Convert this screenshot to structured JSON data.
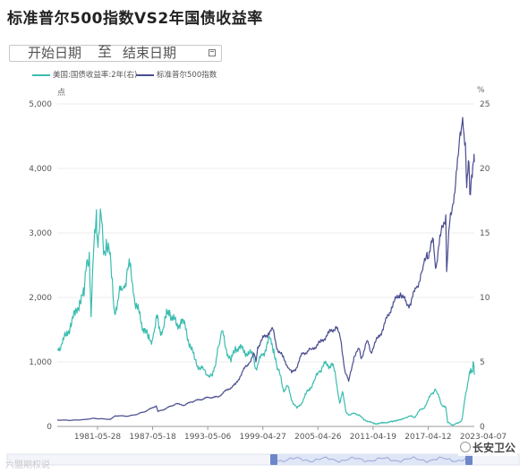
{
  "title": "标准普尔500指数VS2年国债收益率",
  "date_range": {
    "start_label": "开始日期",
    "separator": "至",
    "end_label": "结束日期"
  },
  "legend": {
    "yield_label": "美国:国债收益率:2年(右)",
    "spx_label": "标准普尔500指数",
    "yield_color": "#3bbdb0",
    "spx_color": "#4a4d8f"
  },
  "axes": {
    "left_unit": "点",
    "right_unit": "%"
  },
  "watermark": "六盟期权说",
  "brand": "长安卫公",
  "chart_data": {
    "type": "line",
    "title": "标准普尔500指数VS2年国债收益率",
    "x_tick_labels": [
      "1981-05-28",
      "1987-05-18",
      "1993-05-06",
      "1999-04-27",
      "2005-04-26",
      "2011-04-19",
      "2017-04-12",
      "2023-04-07"
    ],
    "x_range": [
      1976.5,
      2023.3
    ],
    "left_axis": {
      "unit": "点",
      "ylim": [
        0,
        5000
      ],
      "ticks": [
        "0",
        "1,000",
        "2,000",
        "3,000",
        "4,000",
        "5,000"
      ]
    },
    "right_axis": {
      "unit": "%",
      "ylim": [
        0,
        25
      ],
      "ticks": [
        "0",
        "5",
        "10",
        "15",
        "20",
        "25"
      ]
    },
    "grid": true,
    "legend_position": "top-left",
    "series": [
      {
        "name": "美国:国债收益率:2年(右)",
        "axis": "right",
        "color": "#3bbdb0",
        "x": [
          1976.5,
          1977.0,
          1977.5,
          1978.0,
          1978.5,
          1979.0,
          1979.5,
          1979.8,
          1980.1,
          1980.3,
          1980.5,
          1980.9,
          1981.0,
          1981.2,
          1981.4,
          1981.7,
          1982.0,
          1982.3,
          1982.6,
          1982.9,
          1983.3,
          1983.7,
          1984.0,
          1984.5,
          1984.8,
          1985.1,
          1985.5,
          1985.9,
          1986.3,
          1986.7,
          1987.0,
          1987.3,
          1987.7,
          1987.9,
          1988.3,
          1988.7,
          1989.1,
          1989.5,
          1989.9,
          1990.4,
          1990.9,
          1991.4,
          1991.9,
          1992.4,
          1992.9,
          1993.4,
          1993.9,
          1994.2,
          1994.5,
          1994.8,
          1995.0,
          1995.5,
          1996.0,
          1996.5,
          1997.0,
          1997.5,
          1998.0,
          1998.5,
          1998.8,
          1999.0,
          1999.5,
          2000.0,
          2000.4,
          2000.8,
          2001.2,
          2001.6,
          2001.9,
          2002.4,
          2002.9,
          2003.4,
          2003.9,
          2004.4,
          2004.9,
          2005.4,
          2005.9,
          2006.4,
          2006.9,
          2007.3,
          2007.6,
          2007.9,
          2008.2,
          2008.5,
          2008.9,
          2009.3,
          2009.8,
          2010.4,
          2010.9,
          2011.5,
          2012.0,
          2012.5,
          2013.0,
          2013.6,
          2014.1,
          2014.6,
          2015.1,
          2015.6,
          2016.1,
          2016.6,
          2017.1,
          2017.6,
          2018.1,
          2018.5,
          2018.9,
          2019.2,
          2019.6,
          2019.9,
          2020.1,
          2020.3,
          2020.6,
          2021.0,
          2021.5,
          2021.9,
          2022.2,
          2022.5,
          2022.8,
          2022.9,
          2023.1,
          2023.2,
          2023.3
        ],
        "values": [
          6.0,
          6.4,
          7.0,
          8.0,
          8.6,
          9.8,
          10.1,
          12.8,
          13.5,
          8.5,
          12.5,
          16.8,
          14.5,
          15.0,
          16.5,
          13.3,
          14.5,
          13.8,
          11.5,
          9.0,
          9.8,
          10.6,
          10.9,
          12.5,
          11.8,
          10.2,
          9.1,
          8.0,
          7.6,
          6.8,
          6.6,
          7.2,
          8.4,
          7.6,
          7.4,
          8.4,
          9.0,
          8.3,
          7.8,
          8.3,
          7.5,
          6.4,
          5.2,
          4.6,
          4.4,
          4.0,
          3.9,
          4.6,
          6.1,
          6.8,
          7.4,
          5.9,
          5.0,
          6.2,
          6.0,
          5.9,
          5.6,
          5.5,
          4.5,
          4.8,
          5.5,
          6.3,
          6.8,
          6.0,
          4.4,
          3.9,
          2.7,
          3.1,
          1.9,
          1.4,
          1.8,
          2.5,
          3.0,
          3.6,
          4.3,
          4.8,
          4.7,
          4.9,
          4.3,
          3.1,
          1.8,
          2.7,
          1.1,
          0.9,
          1.0,
          0.9,
          0.5,
          0.4,
          0.2,
          0.25,
          0.25,
          0.35,
          0.35,
          0.5,
          0.5,
          0.7,
          0.8,
          0.7,
          1.2,
          1.4,
          2.0,
          2.5,
          2.9,
          2.5,
          1.7,
          1.6,
          1.5,
          0.3,
          0.2,
          0.13,
          0.25,
          0.5,
          1.9,
          3.0,
          4.3,
          4.5,
          4.2,
          5.0,
          4.0
        ]
      },
      {
        "name": "标准普尔500指数",
        "axis": "left",
        "color": "#4a4d8f",
        "x": [
          1976.5,
          1978.0,
          1979.5,
          1980.5,
          1982.5,
          1983.0,
          1984.5,
          1985.5,
          1986.5,
          1987.6,
          1987.8,
          1988.5,
          1989.8,
          1990.8,
          1991.5,
          1992.5,
          1993.5,
          1994.5,
          1995.5,
          1996.5,
          1997.0,
          1997.5,
          1998.0,
          1998.6,
          1998.8,
          1999.0,
          1999.5,
          2000.2,
          2000.7,
          2001.2,
          2001.8,
          2002.5,
          2002.8,
          2003.3,
          2004.0,
          2005.0,
          2006.0,
          2007.0,
          2007.8,
          2008.3,
          2008.8,
          2009.2,
          2009.8,
          2010.4,
          2010.6,
          2011.3,
          2011.7,
          2012.5,
          2013.0,
          2014.0,
          2015.0,
          2015.7,
          2016.1,
          2016.8,
          2017.5,
          2018.0,
          2018.1,
          2018.7,
          2018.95,
          2019.5,
          2020.1,
          2020.2,
          2020.5,
          2020.9,
          2021.5,
          2021.99,
          2022.3,
          2022.45,
          2022.7,
          2022.8,
          2023.0,
          2023.2,
          2023.3
        ],
        "values": [
          100,
          95,
          105,
          125,
          110,
          165,
          160,
          190,
          240,
          320,
          230,
          265,
          350,
          330,
          380,
          415,
          450,
          455,
          560,
          650,
          770,
          900,
          980,
          1120,
          1000,
          1230,
          1350,
          1450,
          1500,
          1200,
          1080,
          900,
          830,
          900,
          1130,
          1190,
          1300,
          1450,
          1550,
          1350,
          850,
          700,
          1080,
          1200,
          1050,
          1330,
          1150,
          1380,
          1500,
          1850,
          2070,
          1900,
          1900,
          2150,
          2420,
          2700,
          2600,
          2900,
          2450,
          2950,
          3280,
          2400,
          3100,
          3450,
          4200,
          4790,
          4400,
          3700,
          4100,
          3600,
          3900,
          4100,
          4100
        ]
      }
    ]
  }
}
